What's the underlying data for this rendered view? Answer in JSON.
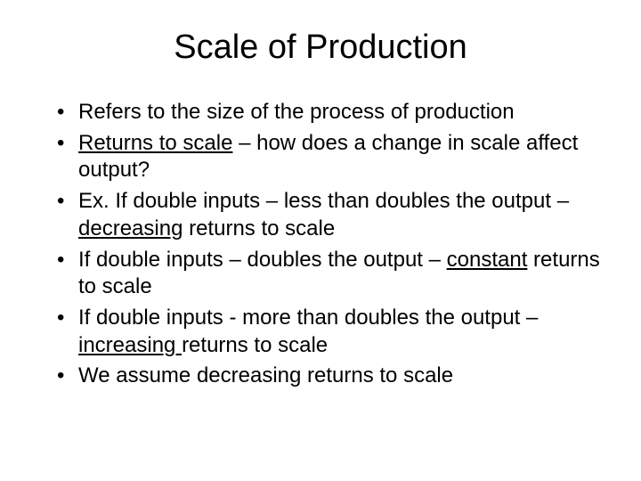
{
  "slide": {
    "background_color": "#ffffff",
    "text_color": "#000000",
    "title": {
      "text": "Scale of Production",
      "fontsize": 38,
      "font_weight": 400,
      "align": "center"
    },
    "bullets": {
      "fontsize": 24,
      "line_height": 1.28,
      "items": [
        {
          "segments": [
            {
              "text": "Refers to the size of the process of production"
            }
          ]
        },
        {
          "segments": [
            {
              "text": "Returns to scale",
              "underline": true
            },
            {
              "text": " – how does a change in scale affect output?"
            }
          ]
        },
        {
          "segments": [
            {
              "text": "Ex.  If double inputs – less than doubles the output –"
            },
            {
              "text": "decreasing",
              "underline": true
            },
            {
              "text": " returns to scale"
            }
          ]
        },
        {
          "segments": [
            {
              "text": "If double inputs – doubles the output – "
            },
            {
              "text": "constant",
              "underline": true
            },
            {
              "text": " returns to scale"
            }
          ]
        },
        {
          "segments": [
            {
              "text": "If double inputs -  more than doubles the output – "
            },
            {
              "text": "increasing ",
              "underline": true
            },
            {
              "text": "returns to scale"
            }
          ]
        },
        {
          "segments": [
            {
              "text": " We assume decreasing returns to scale"
            }
          ]
        }
      ]
    }
  }
}
